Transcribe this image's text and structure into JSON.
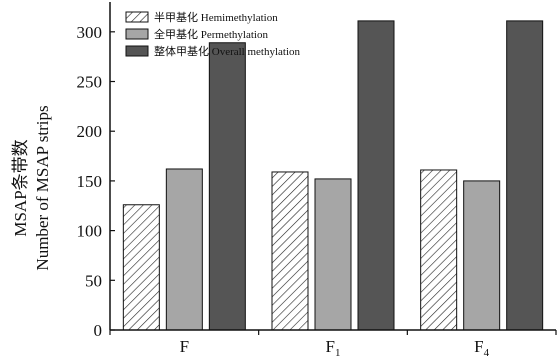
{
  "chart_data": {
    "type": "bar",
    "categories": [
      "F",
      "F1",
      "F4"
    ],
    "category_labels": [
      {
        "base": "F",
        "sub": ""
      },
      {
        "base": "F",
        "sub": "1"
      },
      {
        "base": "F",
        "sub": "4"
      }
    ],
    "series": [
      {
        "name": "半甲基化 Hemimethylation",
        "values": [
          126,
          159,
          161
        ],
        "style": "hatched",
        "color": "#ffffff"
      },
      {
        "name": "全甲基化 Permethylation",
        "values": [
          162,
          152,
          150
        ],
        "style": "solid",
        "color": "#a6a6a6"
      },
      {
        "name": "整体甲基化 Overall methylation",
        "values": [
          289,
          311,
          311
        ],
        "style": "solid",
        "color": "#555555"
      }
    ],
    "ylabel_cn": "MSAP条带数",
    "ylabel_en": "Number of MSAP strips",
    "xlabel": "",
    "title": "",
    "ylim": [
      0,
      330
    ],
    "yticks": [
      0,
      50,
      100,
      150,
      200,
      250,
      300
    ],
    "grid": false,
    "legend_position": "top-left"
  }
}
